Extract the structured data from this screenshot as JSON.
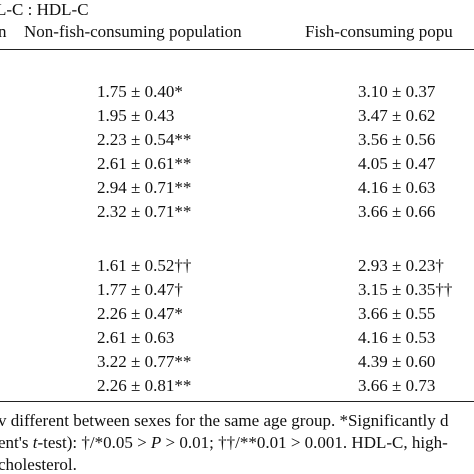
{
  "title": "L-C : HDL-C",
  "table": {
    "header": [
      "n",
      "Non-fish-consuming population",
      "Fish-consuming popu"
    ],
    "groups": [
      {
        "rows": [
          [
            "1.75 ± 0.40*",
            "3.10 ± 0.37"
          ],
          [
            "1.95 ± 0.43",
            "3.47 ± 0.62"
          ],
          [
            "2.23 ± 0.54**",
            "3.56 ± 0.56"
          ],
          [
            "2.61 ± 0.61**",
            "4.05 ± 0.47"
          ],
          [
            "2.94 ± 0.71**",
            "4.16 ± 0.63"
          ],
          [
            "2.32 ± 0.71**",
            "3.66 ± 0.66"
          ]
        ]
      },
      {
        "rows": [
          [
            "1.61 ± 0.52††",
            "2.93 ± 0.23†"
          ],
          [
            "1.77 ± 0.47†",
            "3.15 ± 0.35††"
          ],
          [
            "2.26 ± 0.47*",
            "3.66 ± 0.55"
          ],
          [
            "2.61 ± 0.63",
            "4.16 ± 0.53"
          ],
          [
            "3.22 ± 0.77**",
            "4.39 ± 0.60"
          ],
          [
            "2.26 ± 0.81**",
            "3.66 ± 0.73"
          ]
        ]
      }
    ]
  },
  "footnote": {
    "line1": "v different between sexes for the same age group. *Significantly d",
    "line2": [
      "ent's ",
      "t",
      "-test): †/*0.05 > ",
      "P",
      " > 0.01; ††/**0.01 > 0.001. HDL-C, high-"
    ],
    "line3": "cholesterol."
  }
}
